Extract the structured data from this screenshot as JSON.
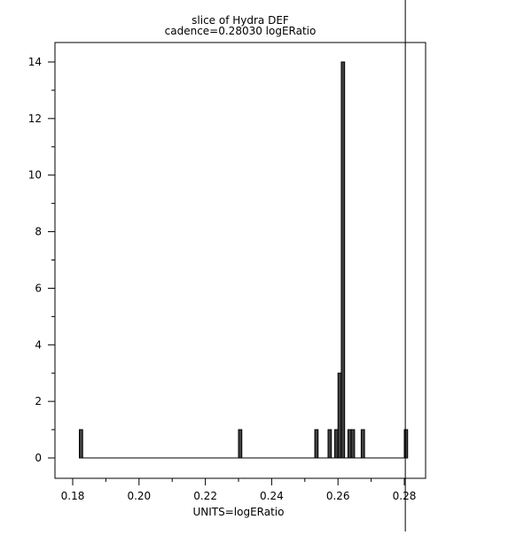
{
  "chart_data": {
    "type": "bar",
    "title": "slice of Hydra DEF",
    "subtitle": "cadence=0.28030 logERatio",
    "xlabel": "UNITS=logERatio",
    "ylabel": "",
    "xlim": [
      0.175,
      0.287
    ],
    "ylim": [
      -0.7,
      14.7
    ],
    "bin_width": 0.001,
    "xticks": [
      "0.18",
      "0.20",
      "0.22",
      "0.24",
      "0.26",
      "0.28"
    ],
    "yticks": [
      "0",
      "2",
      "4",
      "6",
      "8",
      "10",
      "12",
      "14"
    ],
    "bins": [
      {
        "x": 0.1825,
        "count": 1
      },
      {
        "x": 0.2305,
        "count": 1
      },
      {
        "x": 0.2535,
        "count": 1
      },
      {
        "x": 0.2575,
        "count": 1
      },
      {
        "x": 0.2595,
        "count": 1
      },
      {
        "x": 0.2605,
        "count": 3
      },
      {
        "x": 0.2615,
        "count": 14
      },
      {
        "x": 0.2635,
        "count": 1
      },
      {
        "x": 0.2645,
        "count": 1
      },
      {
        "x": 0.2675,
        "count": 1
      },
      {
        "x": 0.2805,
        "count": 1
      }
    ],
    "histogram_range": [
      0.182,
      0.281
    ],
    "marker_line_x": 0.2803,
    "bar_color": "#404040",
    "grid": false
  }
}
